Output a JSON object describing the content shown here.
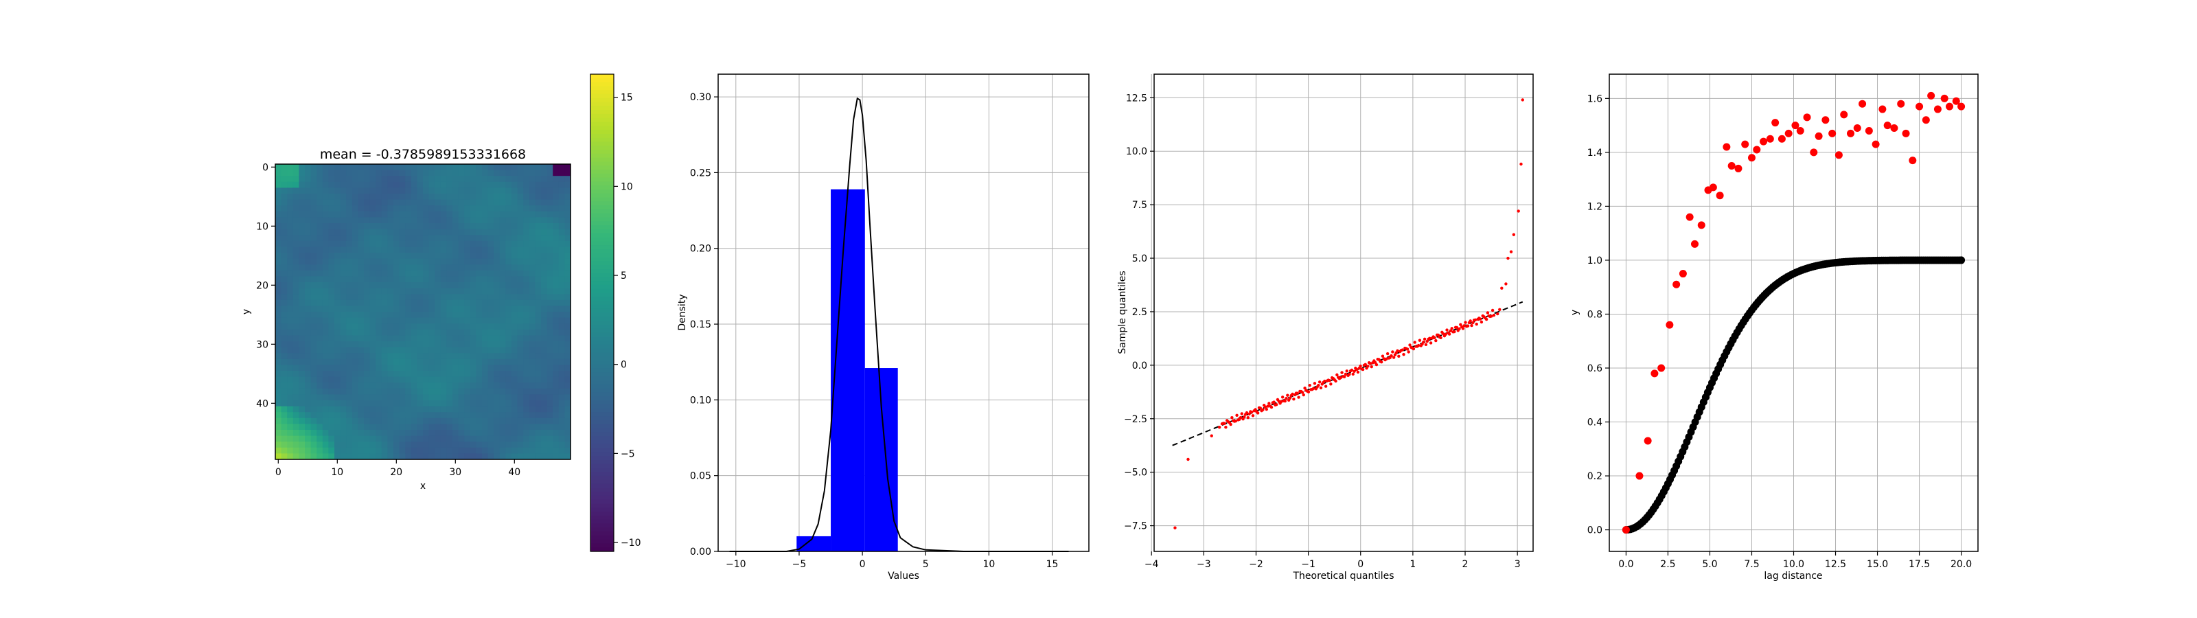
{
  "figure": {
    "background": "#ffffff"
  },
  "chart_data": [
    {
      "type": "heatmap",
      "title": "mean = -0.3785989153331668",
      "xlabel": "x",
      "ylabel": "y",
      "grid_size": [
        50,
        50
      ],
      "x_ticks": [
        "0",
        "10",
        "20",
        "30",
        "40"
      ],
      "y_ticks": [
        "0",
        "10",
        "20",
        "30",
        "40"
      ],
      "colormap": "viridis",
      "colorbar_range": [
        -10.5,
        16.3
      ],
      "colorbar_ticks": [
        "15",
        "10",
        "5",
        "0",
        "−5",
        "−10"
      ],
      "grid": false
    },
    {
      "type": "bar",
      "xlabel": "Values",
      "ylabel": "Density",
      "xlim": [
        -11.4,
        17.9
      ],
      "ylim": [
        0,
        0.315
      ],
      "x_ticks": [
        "−10",
        "−5",
        "0",
        "5",
        "10",
        "15"
      ],
      "y_ticks": [
        "0.00",
        "0.05",
        "0.10",
        "0.15",
        "0.20",
        "0.25",
        "0.30"
      ],
      "bins": [
        {
          "x0": -5.2,
          "x1": -2.5,
          "value": 0.01
        },
        {
          "x0": -2.5,
          "x1": 0.2,
          "value": 0.239
        },
        {
          "x0": 0.2,
          "x1": 2.8,
          "value": 0.121
        }
      ],
      "bar_color": "#0000ff",
      "density_curve": {
        "x": [
          -10.5,
          -6,
          -5,
          -4,
          -3.5,
          -3,
          -2.5,
          -2,
          -1.5,
          -1,
          -0.7,
          -0.4,
          -0.2,
          0,
          0.3,
          0.6,
          1,
          1.5,
          2,
          2.5,
          3,
          3.5,
          4,
          5,
          8,
          16.3
        ],
        "y": [
          0,
          0,
          0.0015,
          0.008,
          0.018,
          0.04,
          0.08,
          0.14,
          0.2,
          0.255,
          0.285,
          0.299,
          0.298,
          0.288,
          0.258,
          0.215,
          0.16,
          0.095,
          0.048,
          0.02,
          0.009,
          0.006,
          0.003,
          0.001,
          0,
          0
        ],
        "color": "#000000"
      },
      "grid": true
    },
    {
      "type": "scatter",
      "xlabel": "Theoretical quantiles",
      "ylabel": "Sample quantiles",
      "xlim": [
        -3.95,
        3.3
      ],
      "ylim": [
        -8.7,
        13.6
      ],
      "x_ticks": [
        "−4",
        "−3",
        "−2",
        "−1",
        "0",
        "1",
        "2",
        "3"
      ],
      "y_ticks": [
        "−7.5",
        "−5.0",
        "−2.5",
        "0.0",
        "2.5",
        "5.0",
        "7.5",
        "10.0",
        "12.5"
      ],
      "points_color": "#ff0000",
      "reference_line": {
        "x": [
          -3.6,
          3.1
        ],
        "y": [
          -3.75,
          2.96
        ],
        "style": "dashed",
        "color": "#000000"
      },
      "outliers": {
        "x": [
          -3.55,
          -3.3,
          -2.85,
          -2.7,
          2.62,
          2.66,
          2.7,
          2.78,
          2.82,
          2.88,
          2.93,
          3.02,
          3.07,
          3.1
        ],
        "y": [
          -7.6,
          -4.4,
          -3.3,
          -2.9,
          2.4,
          2.6,
          3.6,
          3.8,
          5.0,
          5.3,
          6.1,
          7.2,
          9.4,
          12.4
        ]
      },
      "grid": true
    },
    {
      "type": "scatter",
      "xlabel": "lag distance",
      "ylabel": "y",
      "xlim": [
        -1.0,
        21.0
      ],
      "ylim": [
        -0.08,
        1.69
      ],
      "x_ticks": [
        "0.0",
        "2.5",
        "5.0",
        "7.5",
        "10.0",
        "12.5",
        "15.0",
        "17.5",
        "20.0"
      ],
      "y_ticks": [
        "0.0",
        "0.2",
        "0.4",
        "0.6",
        "0.8",
        "1.0",
        "1.2",
        "1.4",
        "1.6"
      ],
      "series": [
        {
          "color": "#000000",
          "model": {
            "sill": 1.0,
            "range": 10.0,
            "n_points": 161,
            "x_max": 20.0
          }
        },
        {
          "color": "#ff0000",
          "x": [
            0.0,
            0.8,
            1.3,
            1.7,
            2.1,
            2.6,
            3.0,
            3.4,
            3.8,
            4.1,
            4.5,
            4.9,
            5.2,
            5.6,
            6.0,
            6.3,
            6.7,
            7.1,
            7.5,
            7.8,
            8.2,
            8.6,
            8.9,
            9.3,
            9.7,
            10.1,
            10.4,
            10.8,
            11.2,
            11.5,
            11.9,
            12.3,
            12.7,
            13.0,
            13.4,
            13.8,
            14.1,
            14.5,
            14.9,
            15.3,
            15.6,
            16.0,
            16.4,
            16.7,
            17.1,
            17.5,
            17.9,
            18.2,
            18.6,
            19.0,
            19.3,
            19.7,
            20.0
          ],
          "y": [
            0.0,
            0.2,
            0.33,
            0.58,
            0.6,
            0.76,
            0.91,
            0.95,
            1.16,
            1.06,
            1.13,
            1.26,
            1.27,
            1.24,
            1.42,
            1.35,
            1.34,
            1.43,
            1.38,
            1.41,
            1.44,
            1.45,
            1.51,
            1.45,
            1.47,
            1.5,
            1.48,
            1.53,
            1.4,
            1.46,
            1.52,
            1.47,
            1.39,
            1.54,
            1.47,
            1.49,
            1.58,
            1.48,
            1.43,
            1.56,
            1.5,
            1.49,
            1.58,
            1.47,
            1.37,
            1.57,
            1.52,
            1.61,
            1.56,
            1.6,
            1.57,
            1.59,
            1.57
          ]
        }
      ],
      "grid": true
    }
  ]
}
